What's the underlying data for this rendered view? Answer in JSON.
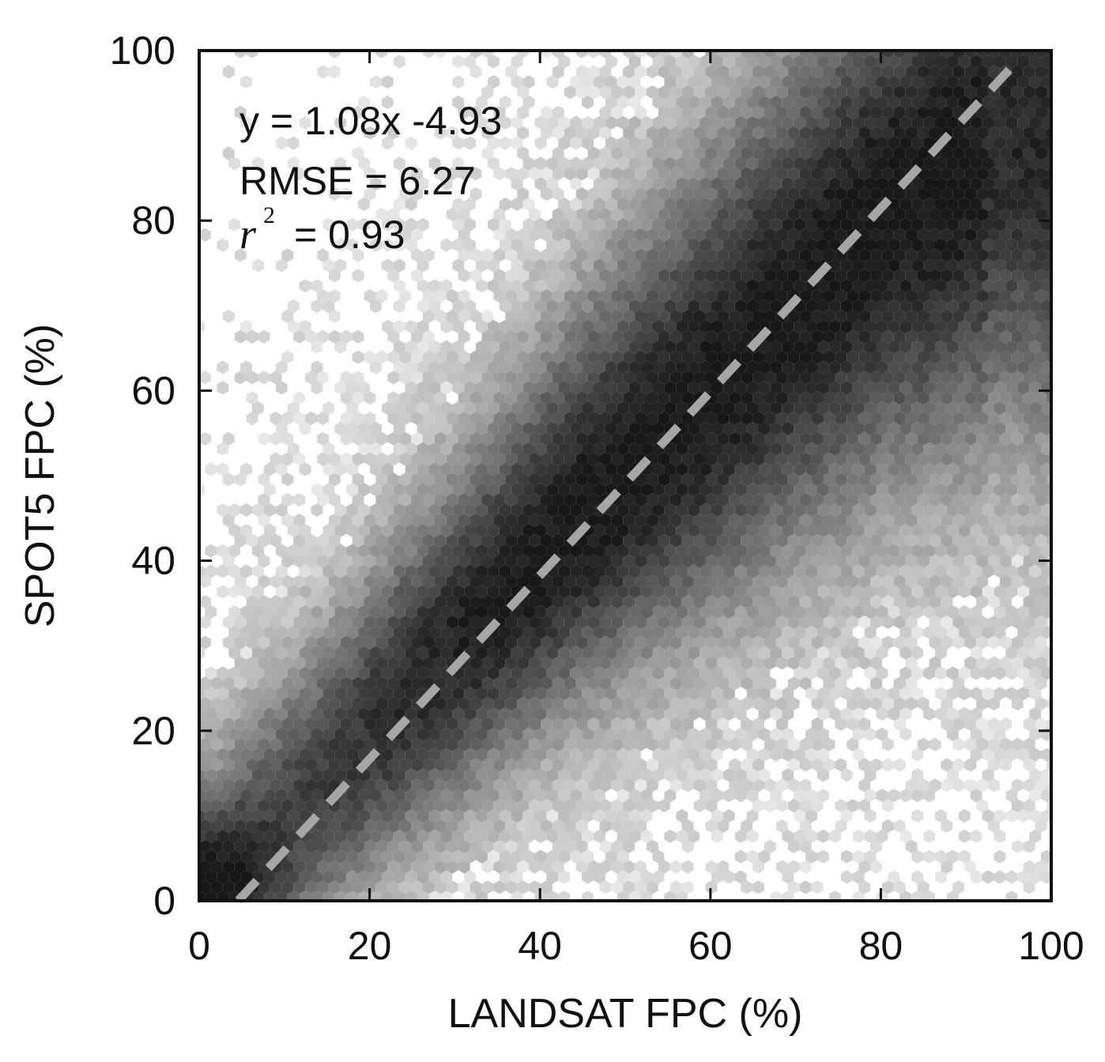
{
  "chart_data": {
    "type": "heatmap",
    "subtype": "hexbin-density-scatter",
    "xlabel": "LANDSAT FPC (%)",
    "ylabel": "SPOT5 FPC (%)",
    "xlim": [
      0,
      100
    ],
    "ylim": [
      0,
      100
    ],
    "xticks": [
      0,
      20,
      40,
      60,
      80,
      100
    ],
    "yticks": [
      0,
      20,
      40,
      60,
      80,
      100
    ],
    "xtick_labels": [
      "0",
      "20",
      "40",
      "60",
      "80",
      "100"
    ],
    "ytick_labels": [
      "0",
      "20",
      "40",
      "60",
      "80",
      "100"
    ],
    "grid": false,
    "colormap": "grayscale (darker = higher point density)",
    "density_ridge": {
      "description": "densest bins follow the fitted line",
      "points": [
        [
          2,
          1
        ],
        [
          15,
          12
        ],
        [
          30,
          28
        ],
        [
          45,
          45
        ],
        [
          60,
          60
        ],
        [
          70,
          70
        ],
        [
          80,
          80
        ],
        [
          95,
          90
        ]
      ]
    },
    "regression_line": {
      "slope": 1.08,
      "intercept": -4.93,
      "x_range": [
        4.6,
        95.2
      ],
      "style": "dashed",
      "color": "#a6a6a6"
    },
    "annotations": {
      "equation": "y = 1.08x -4.93",
      "rmse": "RMSE = 6.27",
      "r2_symbol": "r",
      "r2_exponent": "2",
      "r2_value": "= 0.93"
    }
  }
}
